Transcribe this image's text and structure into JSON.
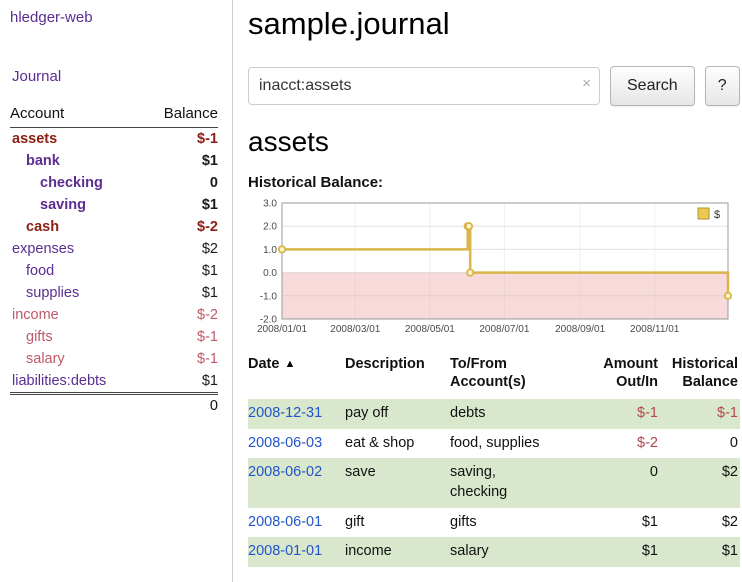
{
  "colors": {
    "purple": "#5c2d91",
    "blue": "#2255cc",
    "neg_strong": "#8c1f14",
    "neg_soft": "#bf5a68",
    "table_neg": "#b2484d",
    "stripe_green": "#d9e8cc"
  },
  "sidebar": {
    "app_title": "hledger-web",
    "nav_journal": "Journal",
    "accounts": {
      "header_account": "Account",
      "header_balance": "Balance",
      "rows": [
        {
          "name": "assets",
          "balance": "$-1",
          "depth": 0,
          "bold": true,
          "name_style": "neg_strong",
          "balance_style": "neg_strong"
        },
        {
          "name": "bank",
          "balance": "$1",
          "depth": 1,
          "bold": true,
          "name_style": "purple",
          "balance_style": "plain"
        },
        {
          "name": "checking",
          "balance": "0",
          "depth": 2,
          "bold": true,
          "name_style": "purple",
          "balance_style": "plain"
        },
        {
          "name": "saving",
          "balance": "$1",
          "depth": 2,
          "bold": true,
          "name_style": "purple",
          "balance_style": "plain"
        },
        {
          "name": "cash",
          "balance": "$-2",
          "depth": 1,
          "bold": true,
          "name_style": "neg_strong",
          "balance_style": "neg_strong"
        },
        {
          "name": "expenses",
          "balance": "$2",
          "depth": 0,
          "bold": false,
          "name_style": "purple",
          "balance_style": "plain"
        },
        {
          "name": "food",
          "balance": "$1",
          "depth": 1,
          "bold": false,
          "name_style": "purple",
          "balance_style": "plain"
        },
        {
          "name": "supplies",
          "balance": "$1",
          "depth": 1,
          "bold": false,
          "name_style": "purple",
          "balance_style": "plain"
        },
        {
          "name": "income",
          "balance": "$-2",
          "depth": 0,
          "bold": false,
          "name_style": "neg_soft",
          "balance_style": "neg_soft"
        },
        {
          "name": "gifts",
          "balance": "$-1",
          "depth": 1,
          "bold": false,
          "name_style": "neg_soft",
          "balance_style": "neg_soft"
        },
        {
          "name": "salary",
          "balance": "$-1",
          "depth": 1,
          "bold": false,
          "name_style": "neg_soft",
          "balance_style": "neg_soft"
        },
        {
          "name": "liabilities:debts",
          "balance": "$1",
          "depth": 0,
          "bold": false,
          "name_style": "purple",
          "balance_style": "plain"
        }
      ],
      "total": "0"
    }
  },
  "main": {
    "title": "sample.journal",
    "search": {
      "value": "inacct:assets",
      "clear": "×",
      "submit": "Search",
      "help": "?"
    },
    "account_heading": "assets",
    "chart_label": "Historical Balance:",
    "register": {
      "headers": {
        "date": "Date",
        "sort_indicator": "▲",
        "description": "Description",
        "account": "To/From\nAccount(s)",
        "amount": "Amount\nOut/In",
        "balance": "Historical\nBalance"
      },
      "rows": [
        {
          "date": "2008-12-31",
          "description": "pay off",
          "account": "debts",
          "amount": "$-1",
          "amount_negative": true,
          "balance": "$-1",
          "balance_negative": true
        },
        {
          "date": "2008-06-03",
          "description": "eat & shop",
          "account": "food, supplies",
          "amount": "$-2",
          "amount_negative": true,
          "balance": "0",
          "balance_negative": false
        },
        {
          "date": "2008-06-02",
          "description": "save",
          "account": "saving,\nchecking",
          "amount": "0",
          "amount_negative": false,
          "balance": "$2",
          "balance_negative": false
        },
        {
          "date": "2008-06-01",
          "description": "gift",
          "account": "gifts",
          "amount": "$1",
          "amount_negative": false,
          "balance": "$2",
          "balance_negative": false
        },
        {
          "date": "2008-01-01",
          "description": "income",
          "account": "salary",
          "amount": "$1",
          "amount_negative": false,
          "balance": "$1",
          "balance_negative": false
        }
      ]
    }
  },
  "chart_data": {
    "type": "line",
    "title": "Historical Balance:",
    "legend": "$",
    "legend_position": "top-right",
    "step": true,
    "grid": true,
    "negative_region_shaded": true,
    "x_range": [
      "2008-01-01",
      "2008-12-31"
    ],
    "ylim": [
      -2.0,
      3.0
    ],
    "yticks": [
      3.0,
      2.0,
      1.0,
      0.0,
      -1.0,
      -2.0
    ],
    "xticks": [
      "2008/01/01",
      "2008/03/01",
      "2008/05/01",
      "2008/07/01",
      "2008/09/01",
      "2008/11/01"
    ],
    "series": [
      {
        "name": "$",
        "points": [
          [
            "2008-01-01",
            1
          ],
          [
            "2008-06-01",
            2
          ],
          [
            "2008-06-02",
            2
          ],
          [
            "2008-06-03",
            0
          ],
          [
            "2008-12-31",
            -1
          ]
        ]
      }
    ],
    "line_color": "#d9b64a",
    "marker_fill": "#fcf3cf",
    "legend_swatch_color": "#e9c94f",
    "negative_region_color": "#f9dada"
  }
}
